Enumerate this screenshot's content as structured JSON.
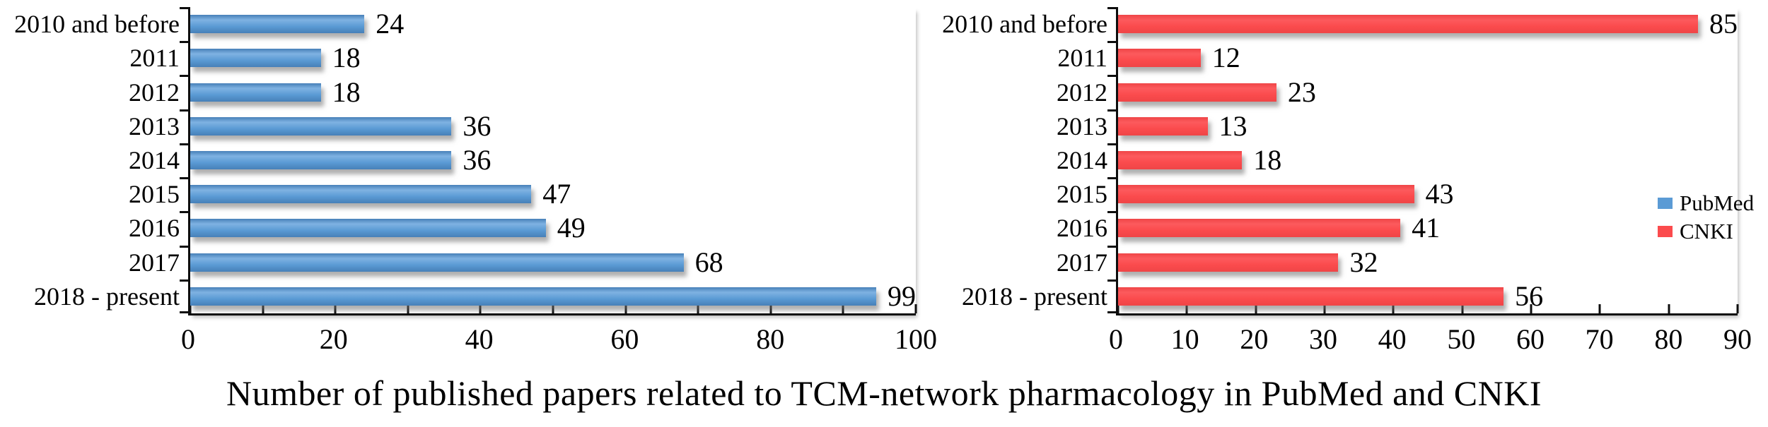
{
  "caption": "Number of published papers related to TCM-network pharmacology in PubMed and CNKI",
  "legend": {
    "position": "right",
    "items": [
      {
        "label": "PubMed",
        "color": "#5B9BD5"
      },
      {
        "label": "CNKI",
        "color": "#FB4B4D"
      }
    ]
  },
  "chart_data": [
    {
      "type": "bar",
      "orientation": "horizontal",
      "title": "",
      "xlabel": "",
      "ylabel": "",
      "grid": false,
      "categories": [
        "2010 and before",
        "2011",
        "2012",
        "2013",
        "2014",
        "2015",
        "2016",
        "2017",
        "2018 - present"
      ],
      "series": [
        {
          "name": "PubMed",
          "values": [
            24,
            18,
            18,
            36,
            36,
            47,
            49,
            68,
            99
          ]
        }
      ],
      "value_labels": [
        24,
        18,
        18,
        36,
        36,
        47,
        49,
        68,
        99
      ],
      "xlim": [
        0,
        100
      ],
      "x_major_ticks": [
        0,
        20,
        40,
        60,
        80,
        100
      ],
      "x_minor_tick_step": 10,
      "bar_color": "#5B9BD5",
      "bar_color_light": "#7FB2E2",
      "bar_color_dark": "#4780B8"
    },
    {
      "type": "bar",
      "orientation": "horizontal",
      "title": "",
      "xlabel": "",
      "ylabel": "",
      "grid": false,
      "categories": [
        "2010 and before",
        "2011",
        "2012",
        "2013",
        "2014",
        "2015",
        "2016",
        "2017",
        "2018 - present"
      ],
      "series": [
        {
          "name": "CNKI",
          "values": [
            85,
            12,
            23,
            13,
            18,
            43,
            41,
            32,
            56
          ]
        }
      ],
      "value_labels": [
        85,
        12,
        23,
        13,
        18,
        43,
        41,
        32,
        56
      ],
      "xlim": [
        0,
        90
      ],
      "x_major_ticks": [
        0,
        10,
        20,
        30,
        40,
        50,
        60,
        70,
        80,
        90
      ],
      "x_minor_tick_step": 10,
      "bar_color": "#FB4B4D",
      "bar_color_light": "#FC5A5D",
      "bar_color_dark": "#EF4547"
    }
  ]
}
